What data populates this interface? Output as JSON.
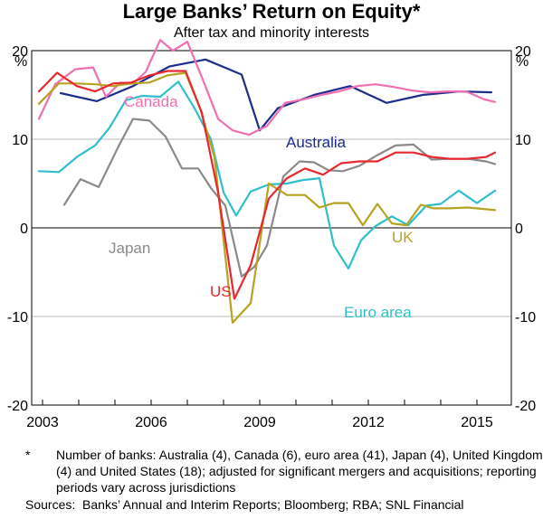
{
  "chart_data": {
    "type": "line",
    "title": "Large Banks’ Return on Equity*",
    "subtitle": "After tax and minority interests",
    "ylabel_left": "%",
    "ylabel_right": "%",
    "ylim": [
      -20,
      20
    ],
    "yticks": [
      -20,
      -10,
      0,
      10,
      20
    ],
    "xlim": [
      2002.7,
      2015.95
    ],
    "xticks": [
      2003,
      2006,
      2009,
      2012,
      2015
    ],
    "series": [
      {
        "name": "Australia",
        "color": "#1c2e8c",
        "x": [
          2003.5,
          2004.5,
          2005.5,
          2006.5,
          2007.5,
          2008.5,
          2009.0,
          2009.5,
          2010.5,
          2011.5,
          2012.5,
          2013.5,
          2014.5,
          2015.4
        ],
        "y": [
          15.2,
          14.3,
          16.0,
          18.2,
          19.0,
          17.3,
          11.0,
          13.5,
          15.0,
          16.0,
          14.1,
          15.0,
          15.4,
          15.3
        ]
      },
      {
        "name": "Canada",
        "color": "#ef6fb1",
        "x": [
          2002.9,
          2003.35,
          2003.9,
          2004.4,
          2004.75,
          2005.15,
          2005.5,
          2005.85,
          2006.25,
          2006.6,
          2007.0,
          2007.45,
          2007.85,
          2008.25,
          2008.7,
          2009.2,
          2009.7,
          2010.2,
          2010.7,
          2011.2,
          2011.7,
          2012.2,
          2012.7,
          2013.2,
          2013.7,
          2014.2,
          2014.7,
          2015.2,
          2015.5
        ],
        "y": [
          12.3,
          16.2,
          17.9,
          18.1,
          14.8,
          16.4,
          16.3,
          17.6,
          21.2,
          20.0,
          21.0,
          16.5,
          12.3,
          11.0,
          10.5,
          11.5,
          14.1,
          14.5,
          15.0,
          15.4,
          16.0,
          16.2,
          15.9,
          15.5,
          15.3,
          15.4,
          15.4,
          14.5,
          14.2
        ]
      },
      {
        "name": "Japan",
        "color": "#8a8a8a",
        "x": [
          2003.6,
          2004.05,
          2004.55,
          2005.1,
          2005.5,
          2005.95,
          2006.4,
          2006.85,
          2007.3,
          2007.65,
          2008.05,
          2008.5,
          2008.85,
          2009.2,
          2009.65,
          2010.1,
          2010.5,
          2010.9,
          2011.3,
          2011.75,
          2012.25,
          2012.75,
          2013.25,
          2013.75,
          2014.25,
          2014.75,
          2015.25,
          2015.5
        ],
        "y": [
          2.6,
          5.5,
          4.6,
          9.2,
          12.3,
          12.1,
          10.3,
          6.7,
          6.7,
          4.5,
          2.5,
          -5.5,
          -4.4,
          -2.0,
          5.8,
          7.5,
          7.4,
          6.5,
          6.4,
          7.0,
          8.2,
          9.3,
          9.4,
          7.7,
          7.8,
          7.8,
          7.5,
          7.2
        ]
      },
      {
        "name": "Euro area",
        "color": "#2fbfcc",
        "x": [
          2002.9,
          2003.45,
          2003.95,
          2004.45,
          2004.85,
          2005.3,
          2005.75,
          2006.25,
          2006.75,
          2007.2,
          2007.65,
          2008.0,
          2008.35,
          2008.75,
          2009.25,
          2009.75,
          2010.2,
          2010.65,
          2011.05,
          2011.45,
          2011.8,
          2012.2,
          2012.65,
          2013.1,
          2013.6,
          2014.0,
          2014.5,
          2015.0,
          2015.5
        ],
        "y": [
          6.4,
          6.3,
          8.0,
          9.3,
          11.3,
          14.4,
          14.9,
          14.8,
          16.5,
          13.5,
          10.0,
          4.0,
          1.4,
          4.1,
          4.9,
          5.0,
          5.4,
          5.6,
          -2.0,
          -4.6,
          -1.4,
          0.2,
          1.3,
          0.3,
          2.5,
          2.7,
          4.2,
          2.8,
          4.2
        ]
      },
      {
        "name": "UK",
        "color": "#b5a321",
        "x": [
          2002.9,
          2003.45,
          2003.95,
          2004.45,
          2004.95,
          2005.45,
          2005.95,
          2006.45,
          2006.95,
          2007.35,
          2007.75,
          2008.25,
          2008.75,
          2009.25,
          2009.75,
          2010.25,
          2010.65,
          2011.05,
          2011.45,
          2011.85,
          2012.25,
          2012.65,
          2013.05,
          2013.45,
          2013.8,
          2014.25,
          2014.75,
          2015.25,
          2015.5
        ],
        "y": [
          14.0,
          16.3,
          16.3,
          16.2,
          16.0,
          16.3,
          16.4,
          17.2,
          17.5,
          13.5,
          8.0,
          -10.7,
          -8.5,
          5.0,
          3.7,
          3.7,
          2.3,
          2.8,
          2.8,
          0.3,
          2.7,
          0.5,
          0.3,
          2.6,
          2.2,
          2.2,
          2.3,
          2.1,
          2.0
        ]
      },
      {
        "name": "US",
        "color": "#e8282e",
        "x": [
          2002.9,
          2003.4,
          2003.95,
          2004.45,
          2004.95,
          2005.45,
          2005.95,
          2006.45,
          2006.95,
          2007.4,
          2007.85,
          2008.3,
          2008.75,
          2009.25,
          2009.75,
          2010.25,
          2010.75,
          2011.25,
          2011.75,
          2012.25,
          2012.75,
          2013.25,
          2013.75,
          2014.25,
          2014.75,
          2015.25,
          2015.5
        ],
        "y": [
          15.4,
          17.5,
          16.0,
          15.4,
          16.3,
          16.4,
          17.2,
          17.7,
          17.7,
          13.0,
          4.0,
          -8.0,
          -4.2,
          3.3,
          5.6,
          6.7,
          6.0,
          7.3,
          7.5,
          7.5,
          8.5,
          8.5,
          8.0,
          7.8,
          7.8,
          8.0,
          8.5
        ]
      }
    ],
    "labels": {
      "canada": "Canada",
      "australia": "Australia",
      "japan": "Japan",
      "uk": "UK",
      "us": "US",
      "euro": "Euro area"
    }
  },
  "footnote": {
    "marker": "*",
    "text": "Number of banks: Australia (4), Canada (6), euro area (41), Japan (4), United Kingdom (4) and United States (18); adjusted for significant mergers and acquisitions; reporting periods vary across jurisdictions"
  },
  "sources": "Sources:  Banks’ Annual and Interim Reports; Bloomberg; RBA; SNL Financial"
}
